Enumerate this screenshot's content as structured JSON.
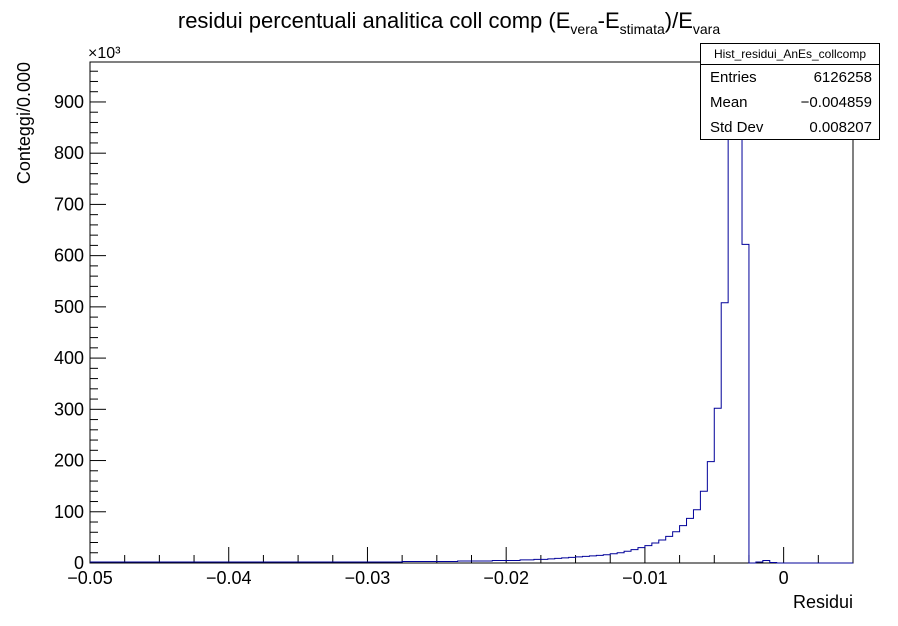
{
  "title": {
    "main": "residui percentuali analitica coll comp (E",
    "sub1": "vera",
    "mid": "-E",
    "sub2": "stimata",
    "end": ")/E",
    "sub3": "vara"
  },
  "stats_box": {
    "name": "Hist_residui_AnEs_collcomp",
    "rows": [
      {
        "label": "Entries",
        "value": "6126258"
      },
      {
        "label": "Mean",
        "value": "−0.004859"
      },
      {
        "label": "Std Dev",
        "value": "0.008207"
      }
    ]
  },
  "colors": {
    "line": "#000099",
    "axis": "#000000",
    "background": "#ffffff"
  },
  "chart_data": {
    "type": "histogram",
    "xlabel": "Residui",
    "ylabel": "Conteggi/0.000",
    "y_multiplier": "×10³",
    "xlim": [
      -0.05,
      0.005
    ],
    "ylim": [
      0,
      978
    ],
    "x_ticks": [
      -0.05,
      -0.04,
      -0.03,
      -0.02,
      -0.01,
      0
    ],
    "x_tick_labels": [
      "−0.05",
      "−0.04",
      "−0.03",
      "−0.02",
      "−0.01",
      "0"
    ],
    "y_ticks": [
      0,
      100,
      200,
      300,
      400,
      500,
      600,
      700,
      800,
      900
    ],
    "bin_width": 0.0005,
    "bin_start": -0.05,
    "values": [
      2,
      2,
      2,
      2,
      2,
      2,
      2,
      2,
      2,
      2,
      2,
      2,
      2,
      2,
      2,
      2,
      2,
      2,
      2,
      2,
      2,
      2,
      2,
      2,
      2,
      2,
      2,
      2,
      2,
      2,
      2,
      2,
      2,
      2,
      2,
      2,
      2,
      2,
      2,
      2,
      2,
      2,
      2,
      2,
      2,
      3,
      3,
      3,
      3,
      3,
      3,
      3,
      3,
      4,
      4,
      4,
      4,
      4,
      5,
      5,
      5,
      5,
      6,
      6,
      7,
      7,
      8,
      9,
      10,
      11,
      12,
      13,
      14,
      15,
      16,
      18,
      20,
      23,
      26,
      30,
      34,
      39,
      45,
      52,
      61,
      73,
      87,
      104,
      140,
      198,
      302,
      508,
      860,
      978,
      622,
      0,
      2,
      5,
      1,
      0,
      0,
      0,
      0,
      0,
      0,
      0,
      0,
      0,
      0,
      0
    ]
  }
}
